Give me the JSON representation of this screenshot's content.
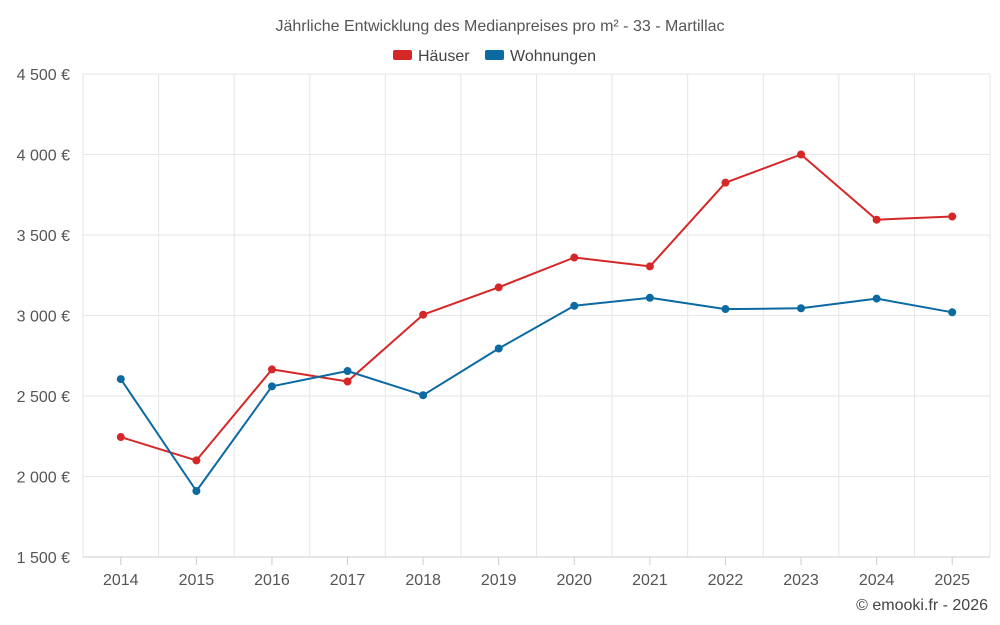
{
  "chart_data": {
    "type": "line",
    "title": "Jährliche Entwicklung des Medianpreises pro m² - 33 - Martillac",
    "categories": [
      "2014",
      "2015",
      "2016",
      "2017",
      "2018",
      "2019",
      "2020",
      "2021",
      "2022",
      "2023",
      "2024",
      "2025"
    ],
    "series": [
      {
        "name": "Häuser",
        "color": "#d62728",
        "values": [
          2245,
          2100,
          2665,
          2590,
          3005,
          3175,
          3360,
          3305,
          3825,
          4000,
          3595,
          3615
        ]
      },
      {
        "name": "Wohnungen",
        "color": "#0b6aa2",
        "values": [
          2605,
          1910,
          2560,
          2655,
          2505,
          2795,
          3060,
          3110,
          3040,
          3045,
          3105,
          3020
        ]
      }
    ],
    "ylim": [
      1500,
      4500
    ],
    "yticks": [
      1500,
      2000,
      2500,
      3000,
      3500,
      4000,
      4500
    ],
    "ytick_labels": [
      "1 500 €",
      "2 000 €",
      "2 500 €",
      "3 000 €",
      "3 500 €",
      "4 000 €",
      "4 500 €"
    ],
    "legend_position": "top-center",
    "grid": true
  },
  "credit": "© emooki.fr - 2026"
}
